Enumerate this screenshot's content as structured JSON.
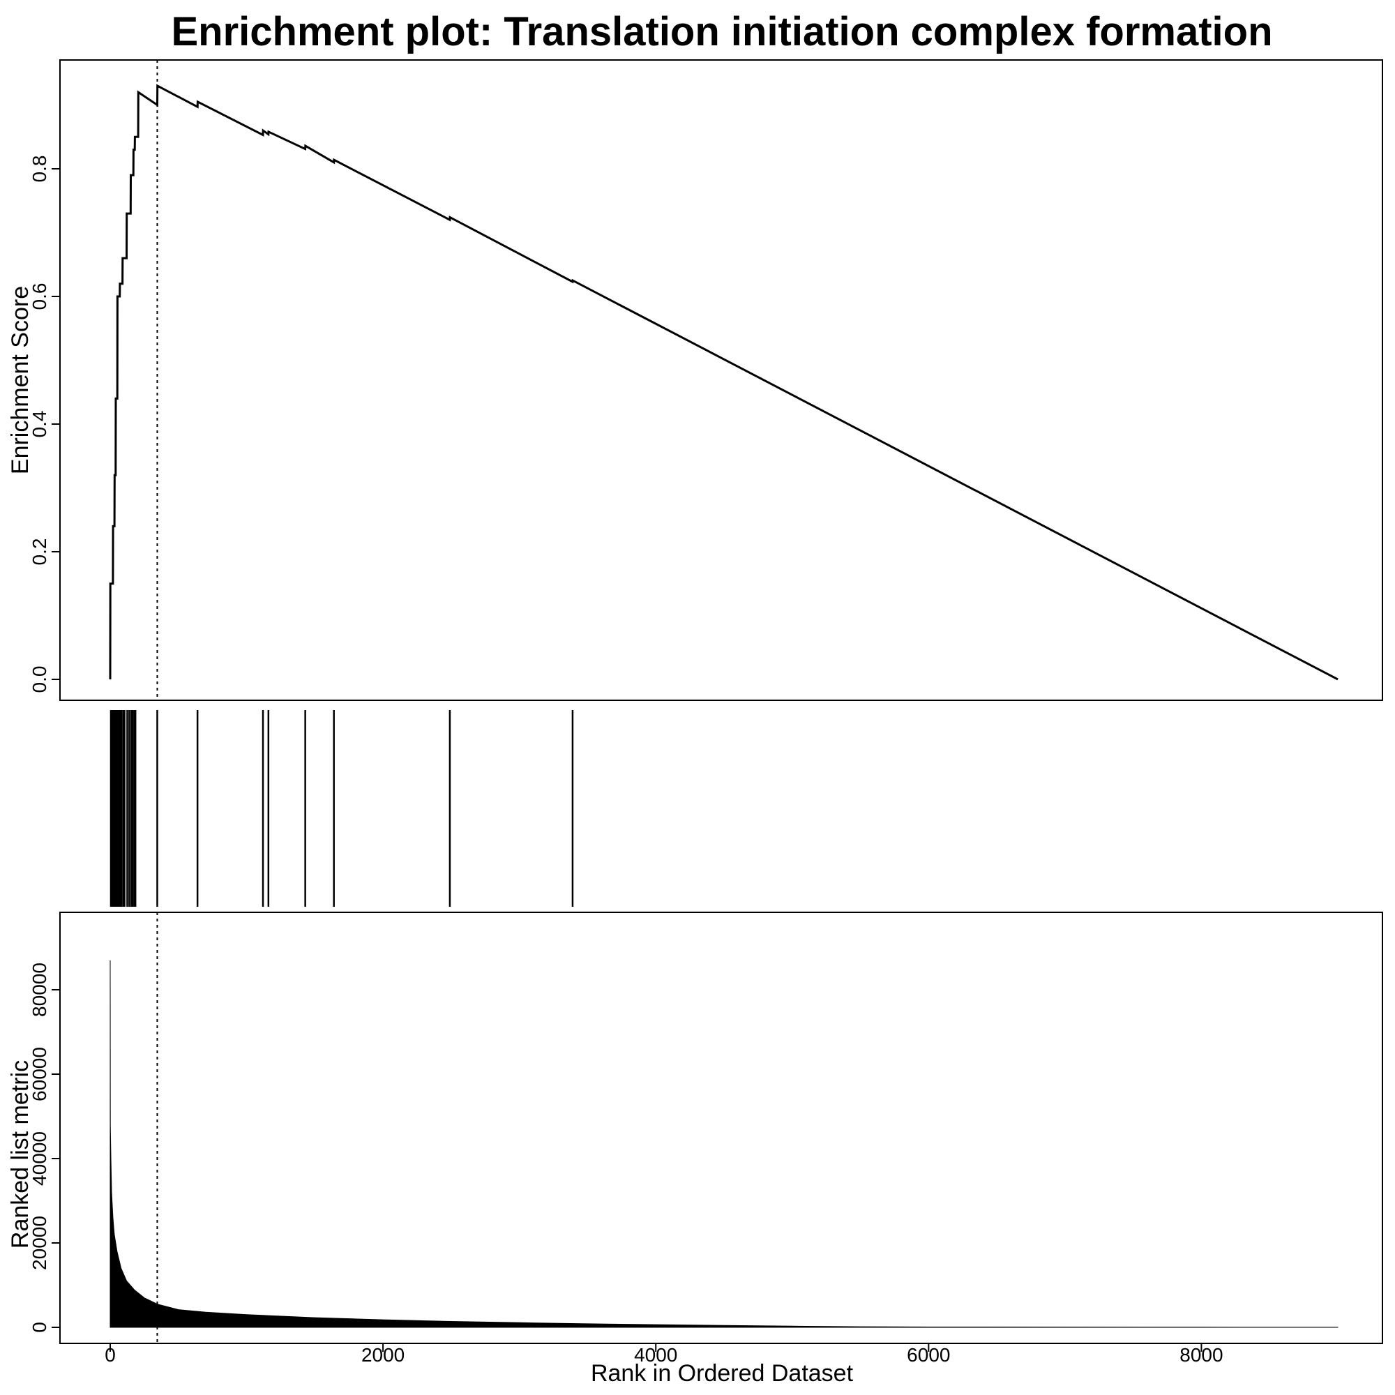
{
  "chart_data": {
    "type": "line",
    "title": "Enrichment plot: Translation initiation complex formation",
    "x_label": "Rank in Ordered Dataset",
    "x_ticks": [
      0,
      2000,
      4000,
      6000,
      8000
    ],
    "xlim": [
      0,
      9000
    ],
    "leading_edge_rank": 345,
    "panels": [
      {
        "name": "enrichment",
        "type": "line",
        "y_label": "Enrichment Score",
        "ylim": [
          0,
          0.93
        ],
        "y_ticks": [
          "0.0",
          "0.2",
          "0.4",
          "0.6",
          "0.8"
        ],
        "x": [
          0,
          1,
          20,
          21,
          31,
          32,
          40,
          41,
          52,
          53,
          70,
          71,
          90,
          91,
          120,
          121,
          150,
          151,
          170,
          171,
          180,
          181,
          205,
          206,
          345,
          346,
          640,
          641,
          1120,
          1121,
          1160,
          1161,
          1430,
          1431,
          1640,
          1641,
          2490,
          2491,
          3390,
          3391,
          9000
        ],
        "y": [
          0.0,
          0.15,
          0.15,
          0.24,
          0.24,
          0.32,
          0.32,
          0.44,
          0.44,
          0.6,
          0.6,
          0.62,
          0.62,
          0.66,
          0.66,
          0.73,
          0.73,
          0.79,
          0.79,
          0.83,
          0.83,
          0.85,
          0.85,
          0.92,
          0.9,
          0.93,
          0.897,
          0.905,
          0.853,
          0.86,
          0.854,
          0.858,
          0.831,
          0.836,
          0.81,
          0.814,
          0.72,
          0.724,
          0.623,
          0.625,
          0.0
        ]
      },
      {
        "name": "hits",
        "type": "barcode",
        "ranks": [
          5,
          15,
          25,
          35,
          45,
          55,
          65,
          72,
          82,
          95,
          105,
          125,
          140,
          155,
          165,
          178,
          185,
          345,
          640,
          1120,
          1160,
          1430,
          1640,
          2490,
          3390
        ]
      },
      {
        "name": "ranked-metric",
        "type": "area",
        "y_label": "Ranked list metric",
        "ylim": [
          0,
          90000
        ],
        "y_ticks": [
          "0",
          "20000",
          "40000",
          "60000",
          "80000"
        ],
        "x": [
          0,
          1,
          5,
          10,
          20,
          30,
          50,
          80,
          120,
          180,
          250,
          345,
          500,
          700,
          1000,
          1500,
          2000,
          2500,
          3000,
          3500,
          4000,
          4500,
          5000,
          5500,
          6000,
          7000,
          8000,
          9000
        ],
        "y": [
          87000,
          48000,
          40000,
          32000,
          26000,
          22000,
          18000,
          14000,
          11000,
          8800,
          7000,
          5500,
          4200,
          3600,
          3000,
          2300,
          1800,
          1400,
          1100,
          850,
          650,
          450,
          280,
          150,
          90,
          60,
          40,
          20
        ]
      }
    ]
  }
}
